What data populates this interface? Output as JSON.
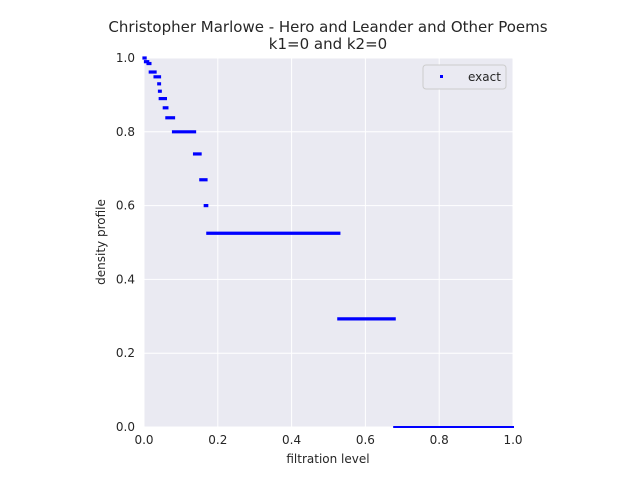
{
  "chart_data": {
    "type": "scatter",
    "title": "Christopher Marlowe - Hero and Leander and Other Poems",
    "subtitle": "k1=0 and k2=0",
    "xlabel": "filtration level",
    "ylabel": "density profile",
    "xlim": [
      0,
      1
    ],
    "ylim": [
      0,
      1
    ],
    "xticks": [
      "0.0",
      "0.2",
      "0.4",
      "0.6",
      "0.8",
      "1.0"
    ],
    "yticks": [
      "0.0",
      "0.2",
      "0.4",
      "0.6",
      "0.8",
      "1.0"
    ],
    "grid": true,
    "legend": {
      "position": "top-right",
      "entries": [
        "exact"
      ]
    },
    "series": [
      {
        "name": "exact",
        "color": "#0000ff",
        "segments": [
          {
            "x": [
              0.0,
              0.003
            ],
            "y": 1.0
          },
          {
            "x": [
              0.004,
              0.01
            ],
            "y": 0.99
          },
          {
            "x": [
              0.011,
              0.016
            ],
            "y": 0.985
          },
          {
            "x": [
              0.017,
              0.03
            ],
            "y": 0.962
          },
          {
            "x": [
              0.03,
              0.042
            ],
            "y": 0.949
          },
          {
            "x": [
              0.04,
              0.042
            ],
            "y": 0.93
          },
          {
            "x": [
              0.042,
              0.044
            ],
            "y": 0.91
          },
          {
            "x": [
              0.044,
              0.058
            ],
            "y": 0.89
          },
          {
            "x": [
              0.055,
              0.062
            ],
            "y": 0.865
          },
          {
            "x": [
              0.062,
              0.08
            ],
            "y": 0.838
          },
          {
            "x": [
              0.08,
              0.137
            ],
            "y": 0.8
          },
          {
            "x": [
              0.137,
              0.152
            ],
            "y": 0.74
          },
          {
            "x": [
              0.154,
              0.168
            ],
            "y": 0.67
          },
          {
            "x": [
              0.166,
              0.17
            ],
            "y": 0.6
          },
          {
            "x": [
              0.173,
              0.528
            ],
            "y": 0.525
          },
          {
            "x": [
              0.528,
              0.678
            ],
            "y": 0.293
          },
          {
            "x": [
              0.678,
              1.0
            ],
            "y": 0.0
          }
        ]
      }
    ]
  }
}
